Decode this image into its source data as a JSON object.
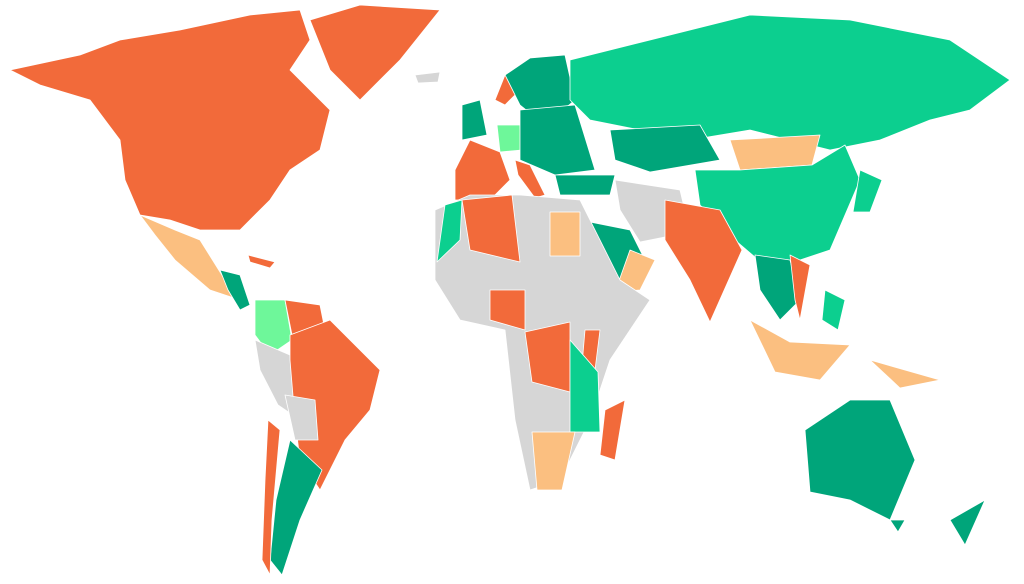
{
  "map": {
    "palette": [
      "#f26a3a",
      "#0ccf8f",
      "#00a57a",
      "#fbbf80",
      "#d6d6d6",
      "#6ef79a"
    ]
  }
}
